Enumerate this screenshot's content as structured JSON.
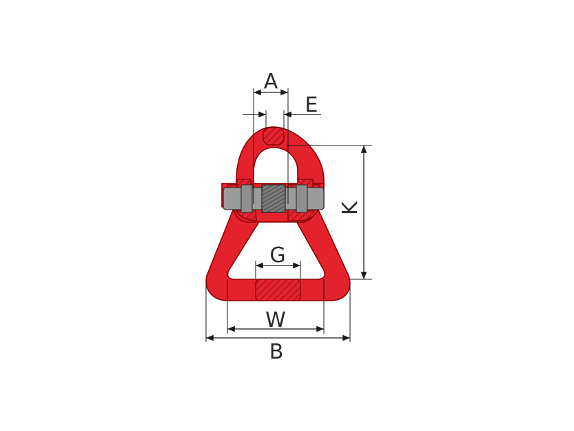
{
  "drawing": {
    "labels": {
      "A": "A",
      "E": "E",
      "K": "K",
      "G": "G",
      "W": "W",
      "B": "B"
    },
    "colors": {
      "part_red": "#e3222c",
      "hatch_red": "#b0121b",
      "bolt_gray": "#9b9b9b",
      "line": "#1a1a1a"
    }
  }
}
